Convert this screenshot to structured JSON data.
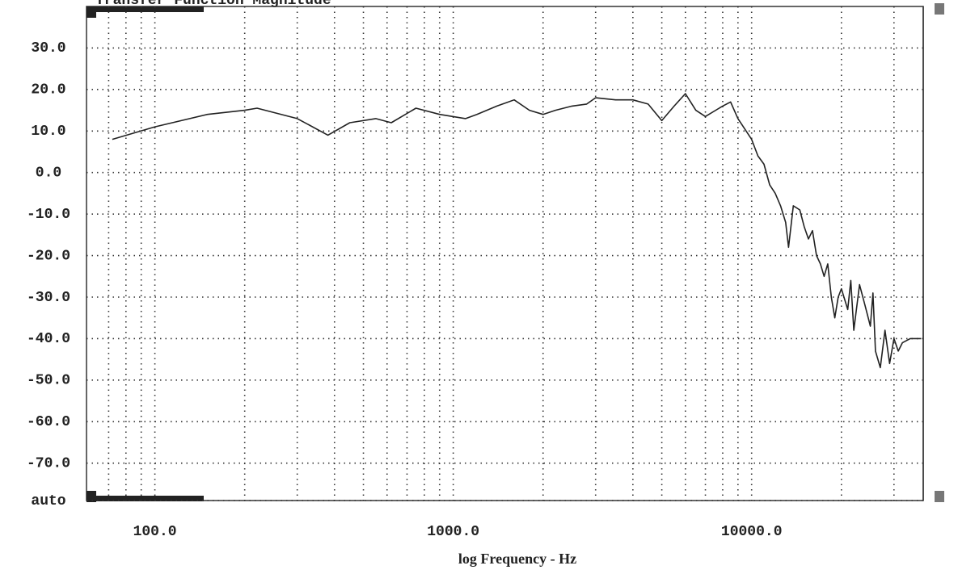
{
  "chart_data": {
    "type": "line",
    "title": "Transfer Function Magnitude",
    "xlabel": "log Frequency - Hz",
    "xscale": "log",
    "grid": true,
    "x": [
      72,
      100,
      150,
      200,
      220,
      300,
      380,
      450,
      550,
      620,
      750,
      900,
      1100,
      1200,
      1400,
      1600,
      1800,
      2000,
      2200,
      2500,
      2800,
      3000,
      3500,
      4000,
      4500,
      5000,
      5500,
      6000,
      6500,
      7000,
      8000,
      8500,
      9000,
      10000,
      10500,
      11000,
      11500,
      12000,
      12500,
      13000,
      13300,
      13800,
      14500,
      15000,
      15500,
      16000,
      16500,
      17000,
      17500,
      18000,
      18500,
      19000,
      19500,
      20000,
      21000,
      21500,
      22000,
      23000,
      24000,
      25000,
      25500,
      26000,
      27000,
      28000,
      29000,
      30000,
      31000,
      32000,
      34000,
      37000
    ],
    "series": [
      {
        "name": "Magnitude",
        "color": "#222222",
        "values": [
          8,
          11,
          14,
          15,
          15.5,
          13,
          9,
          12,
          13,
          12,
          15.5,
          14,
          13,
          14,
          16,
          17.5,
          15,
          14,
          15,
          16,
          16.5,
          18,
          17.5,
          17.5,
          16.5,
          12.5,
          16,
          19,
          15,
          13.5,
          16,
          17,
          13,
          8,
          4,
          2,
          -3,
          -5,
          -8,
          -12,
          -18,
          -8,
          -9,
          -13,
          -16,
          -14,
          -20,
          -22,
          -25,
          -22,
          -30,
          -35,
          -30,
          -28,
          -33,
          -26,
          -38,
          -27,
          -32,
          -37,
          -29,
          -43,
          -47,
          -38,
          -46,
          -40,
          -43,
          -41,
          -40,
          -40
        ]
      }
    ],
    "xlim": [
      59,
      37600
    ],
    "xticks": [
      {
        "value": 100,
        "label": "100.0"
      },
      {
        "value": 1000,
        "label": "1000.0"
      },
      {
        "value": 10000,
        "label": "10000.0"
      }
    ],
    "xminorticks": [
      70,
      80,
      90,
      200,
      300,
      400,
      500,
      600,
      700,
      800,
      900,
      2000,
      3000,
      4000,
      5000,
      6000,
      7000,
      8000,
      9000,
      20000,
      30000
    ],
    "ylim": [
      -79,
      40
    ],
    "yticks": [
      {
        "value": -79,
        "label": "auto"
      },
      {
        "value": -70,
        "label": "-70.0"
      },
      {
        "value": -60,
        "label": "-60.0"
      },
      {
        "value": -50,
        "label": "-50.0"
      },
      {
        "value": -40,
        "label": "-40.0"
      },
      {
        "value": -30,
        "label": "-30.0"
      },
      {
        "value": -20,
        "label": "-20.0"
      },
      {
        "value": -10,
        "label": "-10.0"
      },
      {
        "value": 0,
        "label": "0.0"
      },
      {
        "value": 10,
        "label": "10.0"
      },
      {
        "value": 20,
        "label": "20.0"
      },
      {
        "value": 30,
        "label": "30.0"
      }
    ]
  }
}
